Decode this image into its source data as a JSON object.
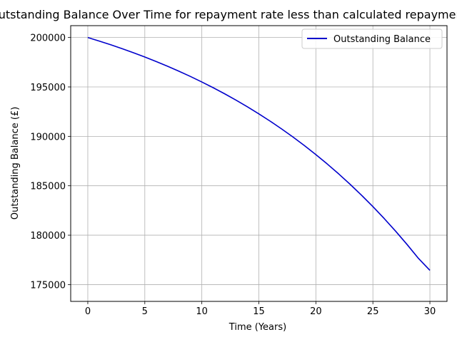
{
  "chart_data": {
    "type": "line",
    "title": "Outstanding Balance Over Time for repayment rate less than calculated repayment",
    "xlabel": "Time (Years)",
    "ylabel": "Outstanding Balance (£)",
    "xlim": [
      -1.5,
      31.5
    ],
    "ylim": [
      173300,
      201200
    ],
    "xticks": [
      0,
      5,
      10,
      15,
      20,
      25,
      30
    ],
    "yticks": [
      175000,
      180000,
      185000,
      190000,
      195000,
      200000
    ],
    "grid": true,
    "legend_position": "top-right",
    "series": [
      {
        "name": "Outstanding Balance",
        "color": "#0000cc",
        "x": [
          0,
          1,
          2,
          3,
          4,
          5,
          6,
          7,
          8,
          9,
          10,
          11,
          12,
          13,
          14,
          15,
          16,
          17,
          18,
          19,
          20,
          21,
          22,
          23,
          24,
          25,
          26,
          27,
          28,
          29,
          30
        ],
        "y": [
          200000,
          199643,
          199268,
          198874,
          198460,
          198025,
          197569,
          197090,
          196587,
          196058,
          195502,
          194919,
          194306,
          193662,
          192986,
          192276,
          191531,
          190748,
          189925,
          189061,
          188154,
          187202,
          186202,
          185151,
          184048,
          182890,
          181673,
          180396,
          179054,
          177645,
          176440
        ]
      }
    ]
  }
}
